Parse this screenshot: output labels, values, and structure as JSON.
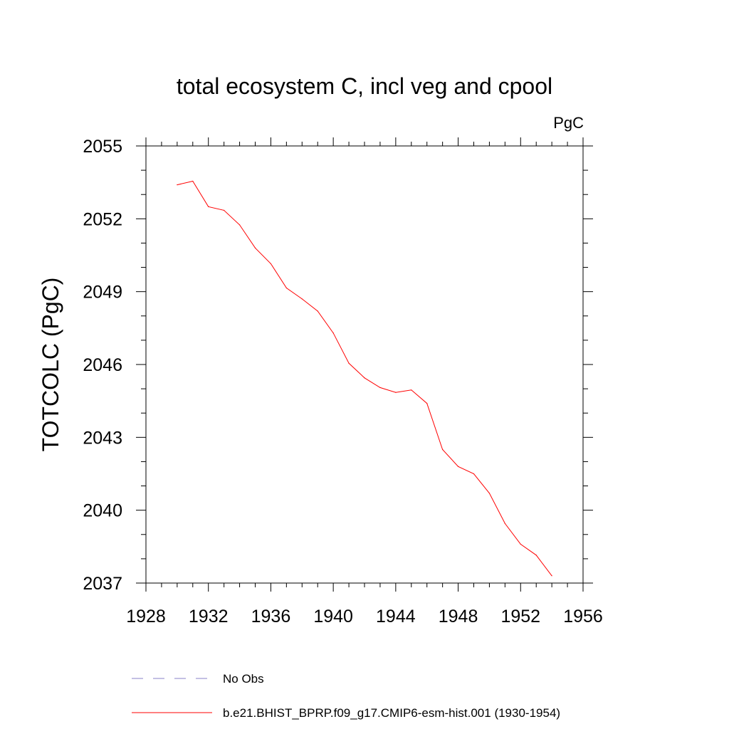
{
  "chart_data": {
    "type": "line",
    "title": "total ecosystem C, incl veg and cpool",
    "units": "PgC",
    "ylabel": "TOTCOLC  (PgC)",
    "xlabel": "",
    "xlim": [
      1928,
      1956
    ],
    "ylim": [
      2037,
      2055
    ],
    "xticks": [
      1928,
      1932,
      1936,
      1940,
      1944,
      1948,
      1952,
      1956
    ],
    "yticks": [
      2037,
      2040,
      2043,
      2046,
      2049,
      2052,
      2055
    ],
    "series": [
      {
        "name": "b.e21.BHIST_BPRP.f09_g17.CMIP6-esm-hist.001 (1930-1954)",
        "color": "#ff0000",
        "style": "solid",
        "x": [
          1930,
          1931,
          1932,
          1933,
          1934,
          1935,
          1936,
          1937,
          1938,
          1939,
          1940,
          1941,
          1942,
          1943,
          1944,
          1945,
          1946,
          1947,
          1948,
          1949,
          1950,
          1951,
          1952,
          1953,
          1954
        ],
        "values": [
          2053.4,
          2053.55,
          2052.5,
          2052.35,
          2051.75,
          2050.8,
          2050.15,
          2049.15,
          2048.7,
          2048.2,
          2047.3,
          2046.05,
          2045.45,
          2045.05,
          2044.85,
          2044.95,
          2044.4,
          2042.5,
          2041.8,
          2041.5,
          2040.7,
          2039.45,
          2038.6,
          2038.15,
          2037.3
        ]
      }
    ],
    "legend": [
      {
        "label": "No Obs",
        "color": "#8a80c8",
        "style": "dashed"
      },
      {
        "label": "b.e21.BHIST_BPRP.f09_g17.CMIP6-esm-hist.001 (1930-1954)",
        "color": "#ff0000",
        "style": "solid"
      }
    ],
    "grid": false,
    "legend_position": "bottom"
  }
}
